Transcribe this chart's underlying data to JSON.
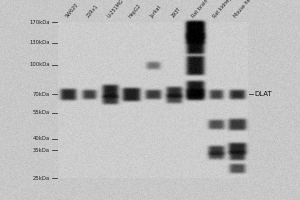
{
  "lane_labels": [
    "SW620",
    "22Rv1",
    "U-251MG",
    "HepG2",
    "Jurkat",
    "293T",
    "Rat brain",
    "Rat kidney",
    "Mouse heart"
  ],
  "mw_markers": [
    "170kDa",
    "130kDa",
    "100kDa",
    "70kDa",
    "55kDa",
    "40kDa",
    "35kDa",
    "25kDa"
  ],
  "mw_values": [
    170,
    130,
    100,
    70,
    55,
    40,
    35,
    25
  ],
  "dlat_label": "DLAT",
  "dlat_mw": 70,
  "bg_color": "#ffffff",
  "blot_bg": "#c8c8c4",
  "fig_width": 3.0,
  "fig_height": 2.0,
  "dpi": 100
}
